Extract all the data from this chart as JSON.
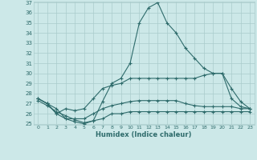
{
  "xlabel": "Humidex (Indice chaleur)",
  "x": [
    0,
    1,
    2,
    3,
    4,
    5,
    6,
    7,
    8,
    9,
    10,
    11,
    12,
    13,
    14,
    15,
    16,
    17,
    18,
    19,
    20,
    21,
    22,
    23
  ],
  "line1": [
    27.5,
    27.0,
    26.5,
    25.5,
    25.2,
    25.0,
    25.3,
    27.2,
    29.0,
    29.5,
    31.0,
    35.0,
    36.5,
    37.0,
    35.0,
    34.0,
    32.5,
    31.5,
    30.5,
    30.0,
    30.0,
    28.5,
    27.2,
    26.5
  ],
  "line2": [
    27.5,
    27.0,
    26.0,
    26.5,
    26.3,
    26.5,
    27.5,
    28.5,
    28.8,
    29.0,
    29.5,
    29.5,
    29.5,
    29.5,
    29.5,
    29.5,
    29.5,
    29.5,
    29.8,
    30.0,
    30.0,
    27.5,
    26.7,
    26.5
  ],
  "line3": [
    27.5,
    27.0,
    26.0,
    25.5,
    25.5,
    25.5,
    26.0,
    26.5,
    26.8,
    27.0,
    27.2,
    27.3,
    27.3,
    27.3,
    27.3,
    27.3,
    27.0,
    26.8,
    26.7,
    26.7,
    26.7,
    26.7,
    26.5,
    26.5
  ],
  "line4": [
    27.3,
    26.8,
    26.2,
    25.8,
    25.4,
    25.1,
    25.3,
    25.5,
    26.0,
    26.0,
    26.2,
    26.2,
    26.2,
    26.2,
    26.2,
    26.2,
    26.2,
    26.2,
    26.2,
    26.2,
    26.2,
    26.2,
    26.2,
    26.2
  ],
  "color": "#2e6b6b",
  "bg_color": "#cce8e8",
  "grid_color": "#aacccc",
  "ylim": [
    25,
    37
  ],
  "xlim": [
    -0.5,
    23.5
  ],
  "yticks": [
    25,
    26,
    27,
    28,
    29,
    30,
    31,
    32,
    33,
    34,
    35,
    36,
    37
  ],
  "xticks": [
    0,
    1,
    2,
    3,
    4,
    5,
    6,
    7,
    8,
    9,
    10,
    11,
    12,
    13,
    14,
    15,
    16,
    17,
    18,
    19,
    20,
    21,
    22,
    23
  ]
}
